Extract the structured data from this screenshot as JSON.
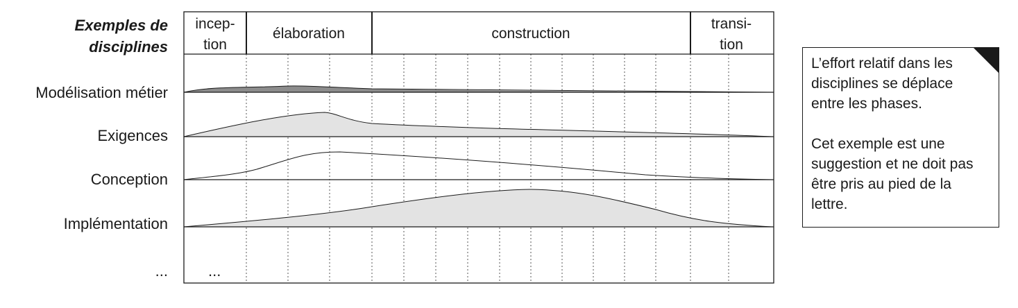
{
  "header": {
    "title_line1": "Exemples de",
    "title_line2": "disciplines"
  },
  "phases": [
    {
      "line1": "incep-",
      "line2": "tion"
    },
    {
      "line1": "élaboration",
      "line2": ""
    },
    {
      "line1": "construction",
      "line2": ""
    },
    {
      "line1": "transi-",
      "line2": "tion"
    }
  ],
  "disciplines": [
    {
      "label": "Modélisation métier"
    },
    {
      "label": "Exigences"
    },
    {
      "label": "Conception"
    },
    {
      "label": "Implémentation"
    },
    {
      "label": "..."
    }
  ],
  "row_ellipsis": "...",
  "note": {
    "paragraph1": "L’effort relatif dans les disciplines se déplace entre les phases.",
    "paragraph2": "Cet exemple est une suggestion et ne doit pas être pris au pied de la lettre."
  },
  "colors": {
    "light_fill": "#e3e3e3",
    "dark_fill": "#8c8c8c",
    "line": "#1a1a1a"
  }
}
